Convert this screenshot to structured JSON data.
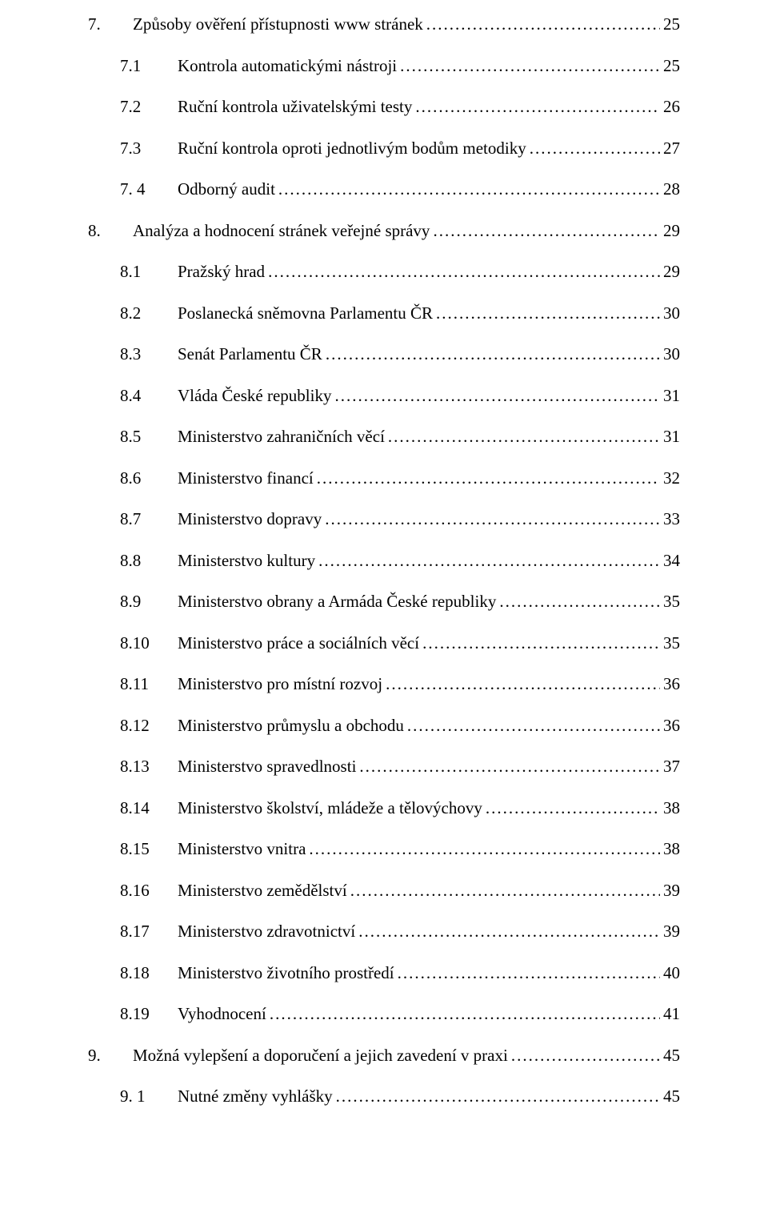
{
  "toc": [
    {
      "level": 0,
      "num": "7.",
      "title": "Způsoby ověření přístupnosti www stránek",
      "page": "25"
    },
    {
      "level": 1,
      "num": "7.1",
      "title": "Kontrola automatickými nástroji",
      "page": "25"
    },
    {
      "level": 1,
      "num": "7.2",
      "title": "Ruční kontrola uživatelskými testy",
      "page": "26"
    },
    {
      "level": 1,
      "num": "7.3",
      "title": "Ruční kontrola oproti jednotlivým bodům metodiky",
      "page": "27"
    },
    {
      "level": 1,
      "num": "7. 4",
      "title": "Odborný audit",
      "page": "28"
    },
    {
      "level": 0,
      "num": "8.",
      "title": "Analýza a hodnocení stránek veřejné správy",
      "page": "29"
    },
    {
      "level": 1,
      "num": "8.1",
      "title": "Pražský hrad",
      "page": "29"
    },
    {
      "level": 1,
      "num": "8.2",
      "title": "Poslanecká sněmovna Parlamentu ČR",
      "page": "30"
    },
    {
      "level": 1,
      "num": "8.3",
      "title": "Senát Parlamentu ČR",
      "page": "30"
    },
    {
      "level": 1,
      "num": "8.4",
      "title": "Vláda České republiky",
      "page": "31"
    },
    {
      "level": 1,
      "num": "8.5",
      "title": "Ministerstvo zahraničních věcí",
      "page": "31"
    },
    {
      "level": 1,
      "num": "8.6",
      "title": "Ministerstvo financí",
      "page": "32"
    },
    {
      "level": 1,
      "num": "8.7",
      "title": "Ministerstvo dopravy",
      "page": "33"
    },
    {
      "level": 1,
      "num": "8.8",
      "title": "Ministerstvo kultury",
      "page": "34"
    },
    {
      "level": 1,
      "num": "8.9",
      "title": "Ministerstvo obrany a Armáda České republiky",
      "page": "35"
    },
    {
      "level": 1,
      "num": "8.10",
      "title": "Ministerstvo práce a sociálních věcí",
      "page": "35"
    },
    {
      "level": 1,
      "num": "8.11",
      "title": "Ministerstvo pro místní rozvoj",
      "page": "36"
    },
    {
      "level": 1,
      "num": "8.12",
      "title": "Ministerstvo průmyslu a obchodu",
      "page": "36"
    },
    {
      "level": 1,
      "num": "8.13",
      "title": "Ministerstvo spravedlnosti",
      "page": "37"
    },
    {
      "level": 1,
      "num": "8.14",
      "title": "Ministerstvo školství, mládeže a tělovýchovy",
      "page": "38"
    },
    {
      "level": 1,
      "num": "8.15",
      "title": "Ministerstvo vnitra",
      "page": "38"
    },
    {
      "level": 1,
      "num": "8.16",
      "title": "Ministerstvo zemědělství",
      "page": "39"
    },
    {
      "level": 1,
      "num": "8.17",
      "title": "Ministerstvo zdravotnictví",
      "page": "39"
    },
    {
      "level": 1,
      "num": "8.18",
      "title": "Ministerstvo životního prostředí",
      "page": "40"
    },
    {
      "level": 1,
      "num": "8.19",
      "title": "Vyhodnocení",
      "page": "41"
    },
    {
      "level": 0,
      "num": "9.",
      "title": "Možná vylepšení a doporučení a jejich zavedení v praxi",
      "page": "45"
    },
    {
      "level": 1,
      "num": "9. 1",
      "title": "Nutné změny vyhlášky",
      "page": "45"
    }
  ]
}
